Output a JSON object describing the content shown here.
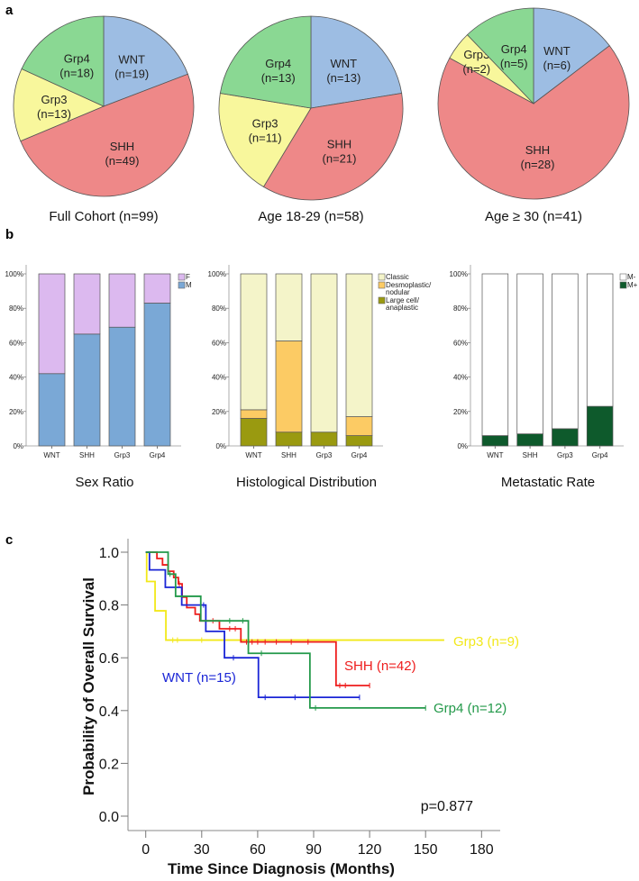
{
  "panels": {
    "a": "a",
    "b": "b",
    "c": "c"
  },
  "chart_data": [
    {
      "type": "pie",
      "title": "Full Cohort (n=99)",
      "slices": [
        {
          "label": "WNT",
          "n_label": "(n=19)",
          "value": 19,
          "color": "#9dbde3"
        },
        {
          "label": "SHH",
          "n_label": "(n=49)",
          "value": 49,
          "color": "#ee8888"
        },
        {
          "label": "Grp3",
          "n_label": "(n=13)",
          "value": 13,
          "color": "#f8f79c"
        },
        {
          "label": "Grp4",
          "n_label": "(n=18)",
          "value": 18,
          "color": "#8ad893"
        }
      ]
    },
    {
      "type": "pie",
      "title": "Age 18-29 (n=58)",
      "slices": [
        {
          "label": "WNT",
          "n_label": "(n=13)",
          "value": 13,
          "color": "#9dbde3"
        },
        {
          "label": "SHH",
          "n_label": "(n=21)",
          "value": 21,
          "color": "#ee8888"
        },
        {
          "label": "Grp3",
          "n_label": "(n=11)",
          "value": 11,
          "color": "#f8f79c"
        },
        {
          "label": "Grp4",
          "n_label": "(n=13)",
          "value": 13,
          "color": "#8ad893"
        }
      ]
    },
    {
      "type": "pie",
      "title": "Age ≥ 30 (n=41)",
      "slices": [
        {
          "label": "WNT",
          "n_label": "(n=6)",
          "value": 6,
          "color": "#9dbde3"
        },
        {
          "label": "SHH",
          "n_label": "(n=28)",
          "value": 28,
          "color": "#ee8888"
        },
        {
          "label": "Grp3",
          "n_label": "(n=2)",
          "value": 2,
          "color": "#f8f79c"
        },
        {
          "label": "Grp4",
          "n_label": "(n=5)",
          "value": 5,
          "color": "#8ad893"
        }
      ]
    },
    {
      "type": "bar",
      "stacked": true,
      "title": "Sex Ratio",
      "categories": [
        "WNT",
        "SHH",
        "Grp3",
        "Grp4"
      ],
      "yticks": [
        "0%",
        "20%",
        "40%",
        "60%",
        "80%",
        "100%"
      ],
      "ylim": [
        0,
        100
      ],
      "series": [
        {
          "name": "M",
          "values": [
            42,
            65,
            69,
            83
          ],
          "color": "#7aa8d6"
        },
        {
          "name": "F",
          "values": [
            58,
            35,
            31,
            17
          ],
          "color": "#dcb9ef"
        }
      ],
      "legend": [
        "F",
        "M"
      ],
      "legend_placement": "top-right"
    },
    {
      "type": "bar",
      "stacked": true,
      "title": "Histological Distribution",
      "categories": [
        "WNT",
        "SHH",
        "Grp3",
        "Grp4"
      ],
      "yticks": [
        "0%",
        "20%",
        "40%",
        "60%",
        "80%",
        "100%"
      ],
      "ylim": [
        0,
        100
      ],
      "series": [
        {
          "name": "Large cell/ anaplastic",
          "values": [
            16,
            8,
            8,
            6
          ],
          "color": "#9a9a10"
        },
        {
          "name": "Desmoplastic/ nodular",
          "values": [
            5,
            53,
            0,
            11
          ],
          "color": "#fccb64"
        },
        {
          "name": "Classic",
          "values": [
            79,
            39,
            92,
            83
          ],
          "color": "#f4f4c9"
        }
      ],
      "legend": [
        [
          "Classic"
        ],
        [
          "Desmoplastic/",
          "nodular"
        ],
        [
          "Large cell/",
          "anaplastic"
        ]
      ],
      "legend_placement": "top-right"
    },
    {
      "type": "bar",
      "stacked": true,
      "title": "Metastatic Rate",
      "categories": [
        "WNT",
        "SHH",
        "Grp3",
        "Grp4"
      ],
      "yticks": [
        "0%",
        "20%",
        "40%",
        "60%",
        "80%",
        "100%"
      ],
      "ylim": [
        0,
        100
      ],
      "series": [
        {
          "name": "M+",
          "values": [
            6,
            7,
            10,
            23
          ],
          "color": "#0e5a2c"
        },
        {
          "name": "M-",
          "values": [
            94,
            93,
            90,
            77
          ],
          "color": "#ffffff"
        }
      ],
      "legend": [
        "M-",
        "M+"
      ],
      "legend_placement": "top-right"
    },
    {
      "type": "line",
      "subtype": "kaplan-meier",
      "xlabel": "Time Since Diagnosis (Months)",
      "ylabel": "Probability of Overall Survival",
      "xlim": [
        0,
        180
      ],
      "ylim": [
        0,
        1
      ],
      "xticks": [
        "0",
        "30",
        "60",
        "90",
        "120",
        "150",
        "180"
      ],
      "yticks": [
        "0.0",
        "0.2",
        "0.4",
        "0.6",
        "0.8",
        "1.0"
      ],
      "annotation": "p=0.877",
      "series": [
        {
          "name": "Grp3 (n=9)",
          "color": "#f2e81a",
          "steps": [
            [
              0,
              1.0
            ],
            [
              0.5,
              0.889
            ],
            [
              5,
              0.778
            ],
            [
              10.8,
              0.667
            ]
          ],
          "end": 160,
          "censored": [
            14.5,
            17,
            30
          ]
        },
        {
          "name": "SHH (n=42)",
          "color": "#ee1c1c",
          "steps": [
            [
              0,
              1.0
            ],
            [
              6,
              0.976
            ],
            [
              9,
              0.952
            ],
            [
              12,
              0.928
            ],
            [
              15,
              0.904
            ],
            [
              17.5,
              0.88
            ],
            [
              19.5,
              0.83
            ],
            [
              22,
              0.79
            ],
            [
              26.5,
              0.765
            ],
            [
              29,
              0.74
            ],
            [
              39.5,
              0.71
            ],
            [
              51,
              0.66
            ],
            [
              102,
              0.495
            ]
          ],
          "end": 120,
          "censored": [
            18,
            36,
            45,
            48,
            54,
            57,
            60,
            64,
            70,
            78,
            87,
            104,
            107,
            120
          ]
        },
        {
          "name": "WNT (n=15)",
          "color": "#1a25d6",
          "steps": [
            [
              0,
              1.0
            ],
            [
              2,
              0.933
            ],
            [
              10.5,
              0.867
            ],
            [
              19.3,
              0.8
            ],
            [
              32.2,
              0.7
            ],
            [
              42.2,
              0.6
            ],
            [
              60.4,
              0.45
            ]
          ],
          "end": 114.6,
          "censored": [
            16,
            31,
            47,
            64,
            80,
            114.6
          ]
        },
        {
          "name": "Grp4 (n=12)",
          "color": "#23994a",
          "steps": [
            [
              0,
              1.0
            ],
            [
              12,
              0.917
            ],
            [
              16,
              0.833
            ],
            [
              29.5,
              0.74
            ],
            [
              55,
              0.617
            ],
            [
              88,
              0.41
            ]
          ],
          "end": 150,
          "censored": [
            13,
            45,
            52,
            62,
            91,
            150
          ]
        }
      ]
    }
  ]
}
